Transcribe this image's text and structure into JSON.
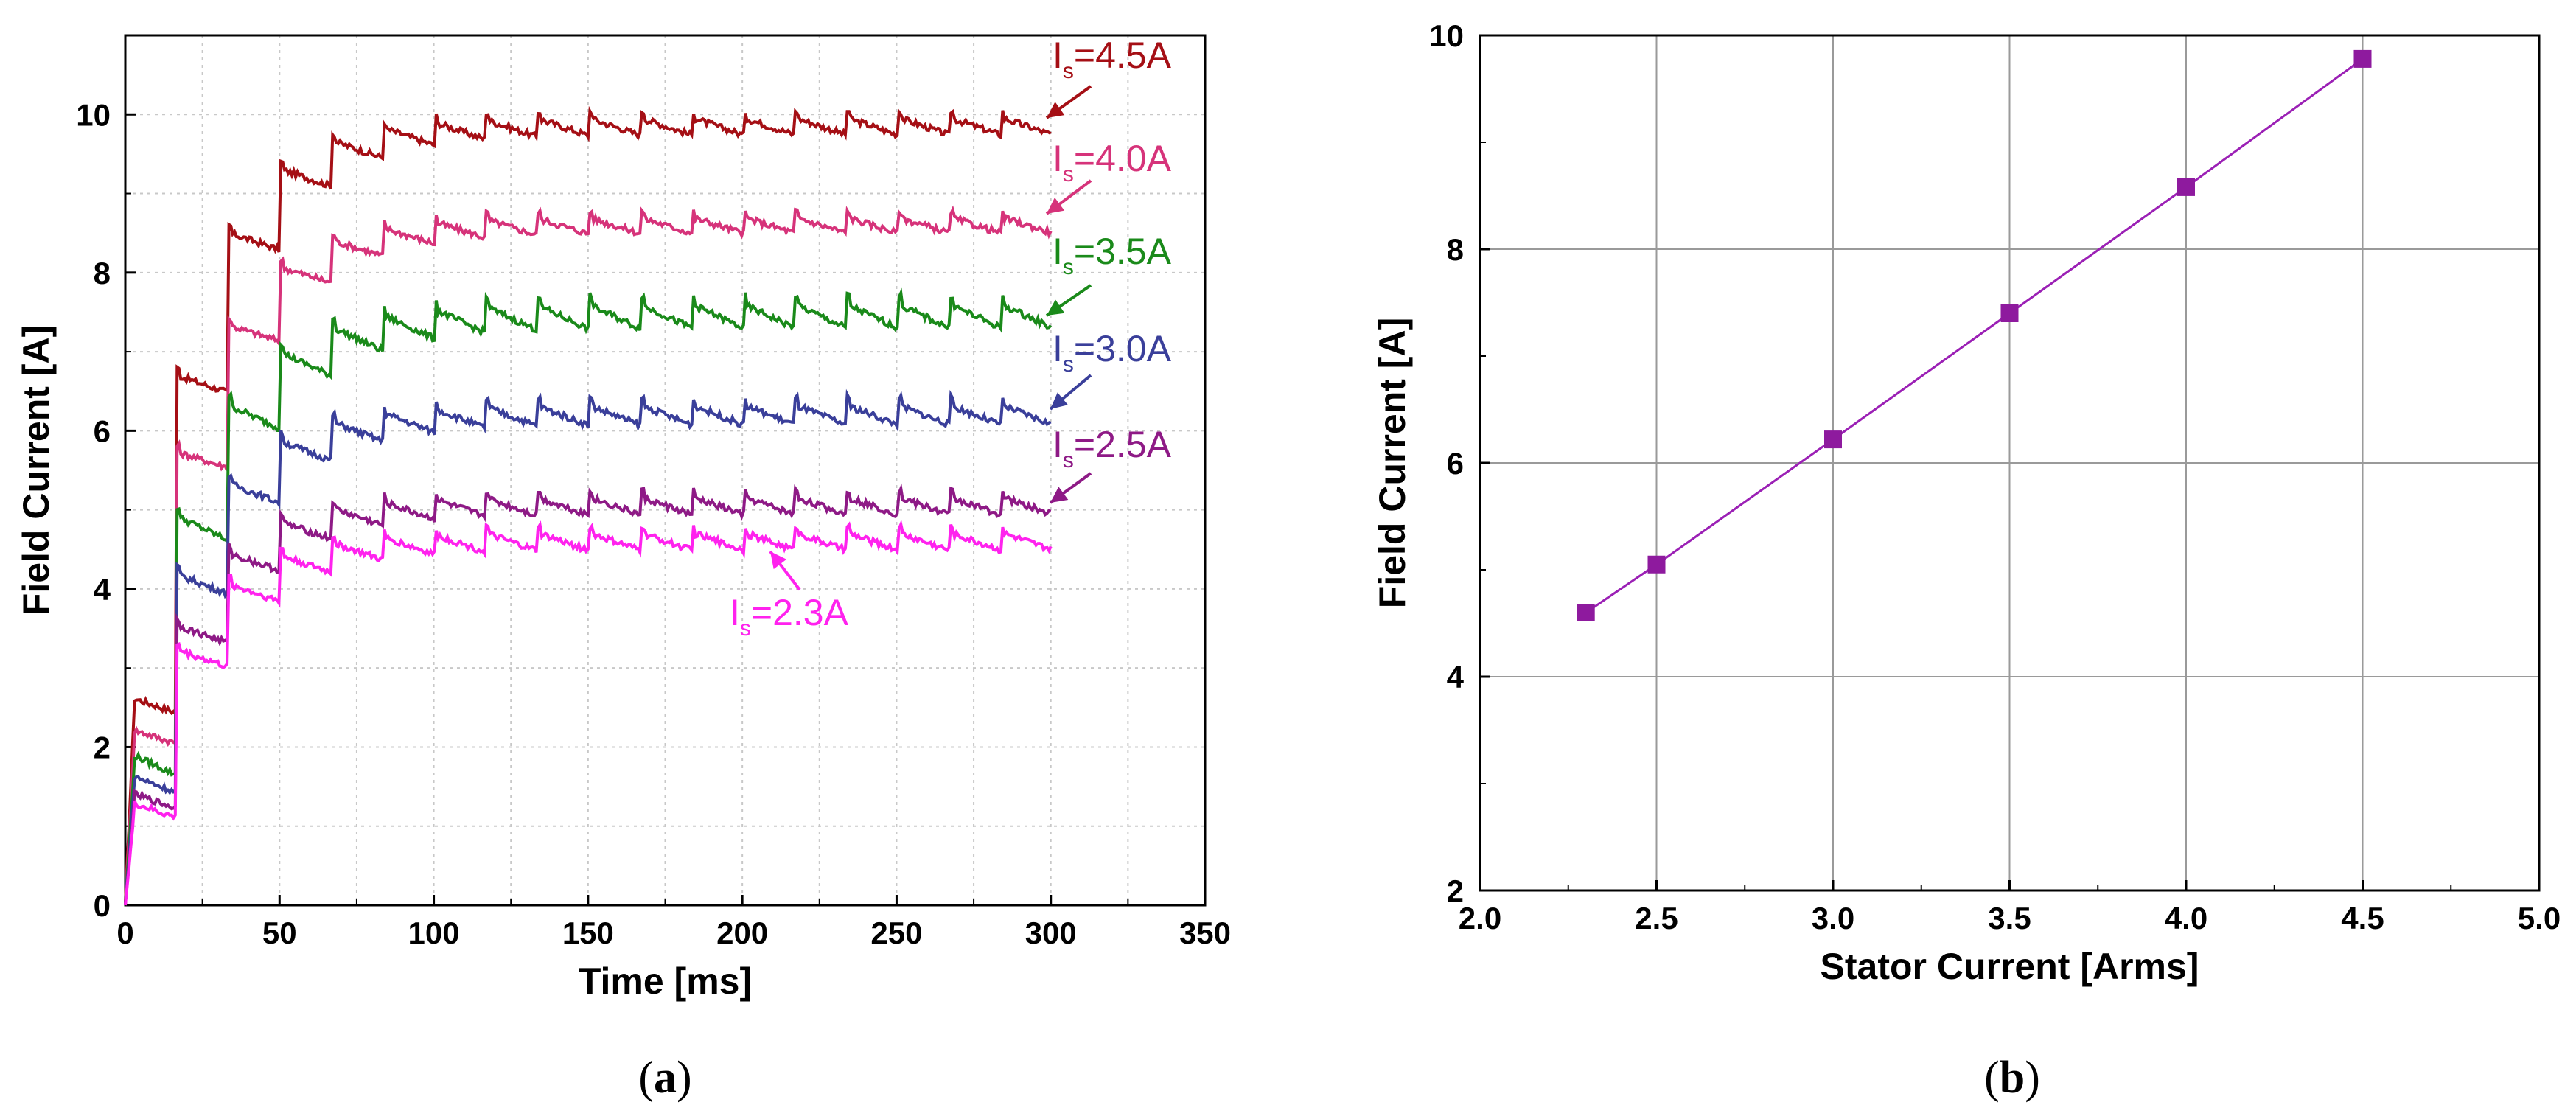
{
  "chart_data": [
    {
      "type": "line",
      "panel": "a",
      "panel_label_pre": "(",
      "panel_letter": "a",
      "panel_label_post": ")",
      "xlabel": "Time [ms]",
      "ylabel": "Field Current [A]",
      "xlim": [
        0,
        350
      ],
      "ylim": [
        0,
        11
      ],
      "xticks": [
        0,
        50,
        100,
        150,
        200,
        250,
        300,
        350
      ],
      "yticks": [
        0,
        2,
        4,
        6,
        8,
        10
      ],
      "grid": true,
      "step_period_ms": 16.7,
      "x_end": 300,
      "series": [
        {
          "name": "Is=4.5A",
          "label_main": "I",
          "label_sub": "s",
          "label_value": "=4.5A",
          "color": "#a50f15",
          "final": 9.85,
          "first_step": 1.7,
          "decay": 0.078,
          "ripple": 0.22
        },
        {
          "name": "Is=4.0A",
          "label_main": "I",
          "label_sub": "s",
          "label_value": "=4.0A",
          "color": "#d6337a",
          "final": 8.6,
          "first_step": 1.45,
          "decay": 0.075,
          "ripple": 0.2
        },
        {
          "name": "Is=3.5A",
          "label_main": "I",
          "label_sub": "s",
          "label_value": "=3.5A",
          "color": "#1a8a1a",
          "final": 7.45,
          "first_step": 1.3,
          "decay": 0.072,
          "ripple": 0.3
        },
        {
          "name": "Is=3.0A",
          "label_main": "I",
          "label_sub": "s",
          "label_value": "=3.0A",
          "color": "#3a3f9a",
          "final": 6.2,
          "first_step": 1.15,
          "decay": 0.075,
          "ripple": 0.25
        },
        {
          "name": "Is=2.5A",
          "label_main": "I",
          "label_sub": "s",
          "label_value": "=2.5A",
          "color": "#8e1a86",
          "final": 5.05,
          "first_step": 1.0,
          "decay": 0.08,
          "ripple": 0.22
        },
        {
          "name": "Is=2.3A",
          "label_main": "I",
          "label_sub": "s",
          "label_value": "=2.3A",
          "color": "#ff22ee",
          "final": 4.6,
          "first_step": 0.85,
          "decay": 0.08,
          "ripple": 0.22
        }
      ]
    },
    {
      "type": "line",
      "panel": "b",
      "panel_label_pre": "(",
      "panel_letter": "b",
      "panel_label_post": ")",
      "xlabel": "Stator Current [Arms]",
      "ylabel": "Field Current [A]",
      "xlim": [
        2.0,
        5.0
      ],
      "ylim": [
        2,
        10
      ],
      "xticks": [
        "2.0",
        "2.5",
        "3.0",
        "3.5",
        "4.0",
        "4.5",
        "5.0"
      ],
      "yticks": [
        2,
        4,
        6,
        8,
        10
      ],
      "grid": true,
      "color": "#9b20b5",
      "marker_color": "#8e1a9e",
      "x": [
        2.3,
        2.5,
        3.0,
        3.5,
        4.0,
        4.5
      ],
      "y": [
        4.6,
        5.05,
        6.22,
        7.4,
        8.58,
        9.78
      ]
    }
  ]
}
